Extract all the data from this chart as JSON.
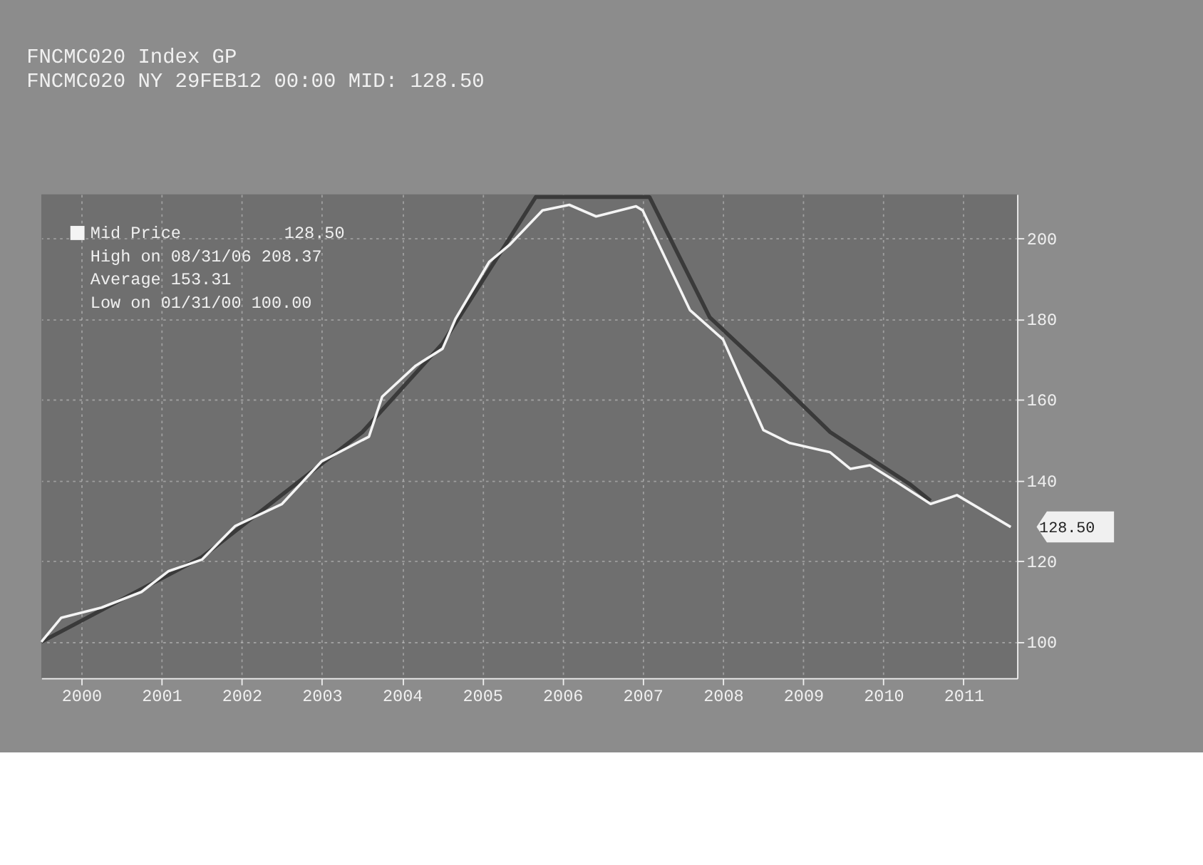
{
  "chart_data": {
    "type": "line",
    "title": "FNCMC020 Index GP",
    "subtitle": "FNCMC020        NY 29FEB12 00:00    MID: 128.50",
    "series": [
      {
        "name": "Mid Price",
        "color": "#f4f4f4",
        "x": [
          "2000-01",
          "2000-04",
          "2000-10",
          "2001-04",
          "2001-08",
          "2002-01",
          "2002-06",
          "2003-01",
          "2003-07",
          "2004-02",
          "2004-04",
          "2004-09",
          "2005-01",
          "2005-03",
          "2005-08",
          "2005-11",
          "2006-04",
          "2006-08",
          "2006-12",
          "2007-06",
          "2007-07",
          "2008-02",
          "2008-07",
          "2009-01",
          "2009-05",
          "2009-11",
          "2010-02",
          "2010-05",
          "2010-09",
          "2011-02",
          "2011-05",
          "2011-06",
          "2012-02"
        ],
        "values": [
          100,
          106,
          108.5,
          112.4,
          117.5,
          120.4,
          128.7,
          134.2,
          144.8,
          150.9,
          160.8,
          168.5,
          172.7,
          180.1,
          194.2,
          198.4,
          207,
          208.37,
          205.5,
          208,
          207,
          182.3,
          175,
          152.5,
          149.3,
          147,
          142.9,
          143.8,
          139.6,
          134.2,
          135.8,
          136.4,
          128.5
        ]
      },
      {
        "color": "#3a3a3a",
        "x": [
          "2000-01",
          "2002-01",
          "2004-01",
          "2005-01",
          "2005-11",
          "2006-03",
          "2007-08",
          "2008-05",
          "2009-03",
          "2009-11",
          "2010-11",
          "2011-02"
        ],
        "values": [
          100,
          121,
          152,
          174,
          200,
          210.3,
          210.3,
          180.5,
          165,
          152,
          139,
          135
        ]
      }
    ],
    "xlim": [
      "2000-01-01",
      "2012-03-01"
    ],
    "xticks": [
      {
        "value": "2000-07-01",
        "label": "2000"
      },
      {
        "value": "2001-07-01",
        "label": "2001"
      },
      {
        "value": "2002-07-01",
        "label": "2002"
      },
      {
        "value": "2003-07-01",
        "label": "2003"
      },
      {
        "value": "2004-07-01",
        "label": "2004"
      },
      {
        "value": "2005-07-01",
        "label": "2005"
      },
      {
        "value": "2006-07-01",
        "label": "2006"
      },
      {
        "value": "2007-07-01",
        "label": "2007"
      },
      {
        "value": "2008-07-01",
        "label": "2008"
      },
      {
        "value": "2009-07-01",
        "label": "2009"
      },
      {
        "value": "2010-07-01",
        "label": "2010"
      },
      {
        "value": "2011-07-01",
        "label": "2011"
      }
    ],
    "ylim": [
      91,
      211
    ],
    "yticks": [
      100,
      120,
      140,
      160,
      180,
      200
    ],
    "grid": true,
    "legend": "top left",
    "annotations": [
      "128.50",
      "High on 08/31/06 208.37",
      "Average          153.31",
      "Low on 01/31/00  100.00",
      {
        "text": "128.50",
        "x": "2012-02",
        "y": 128.5
      }
    ]
  }
}
